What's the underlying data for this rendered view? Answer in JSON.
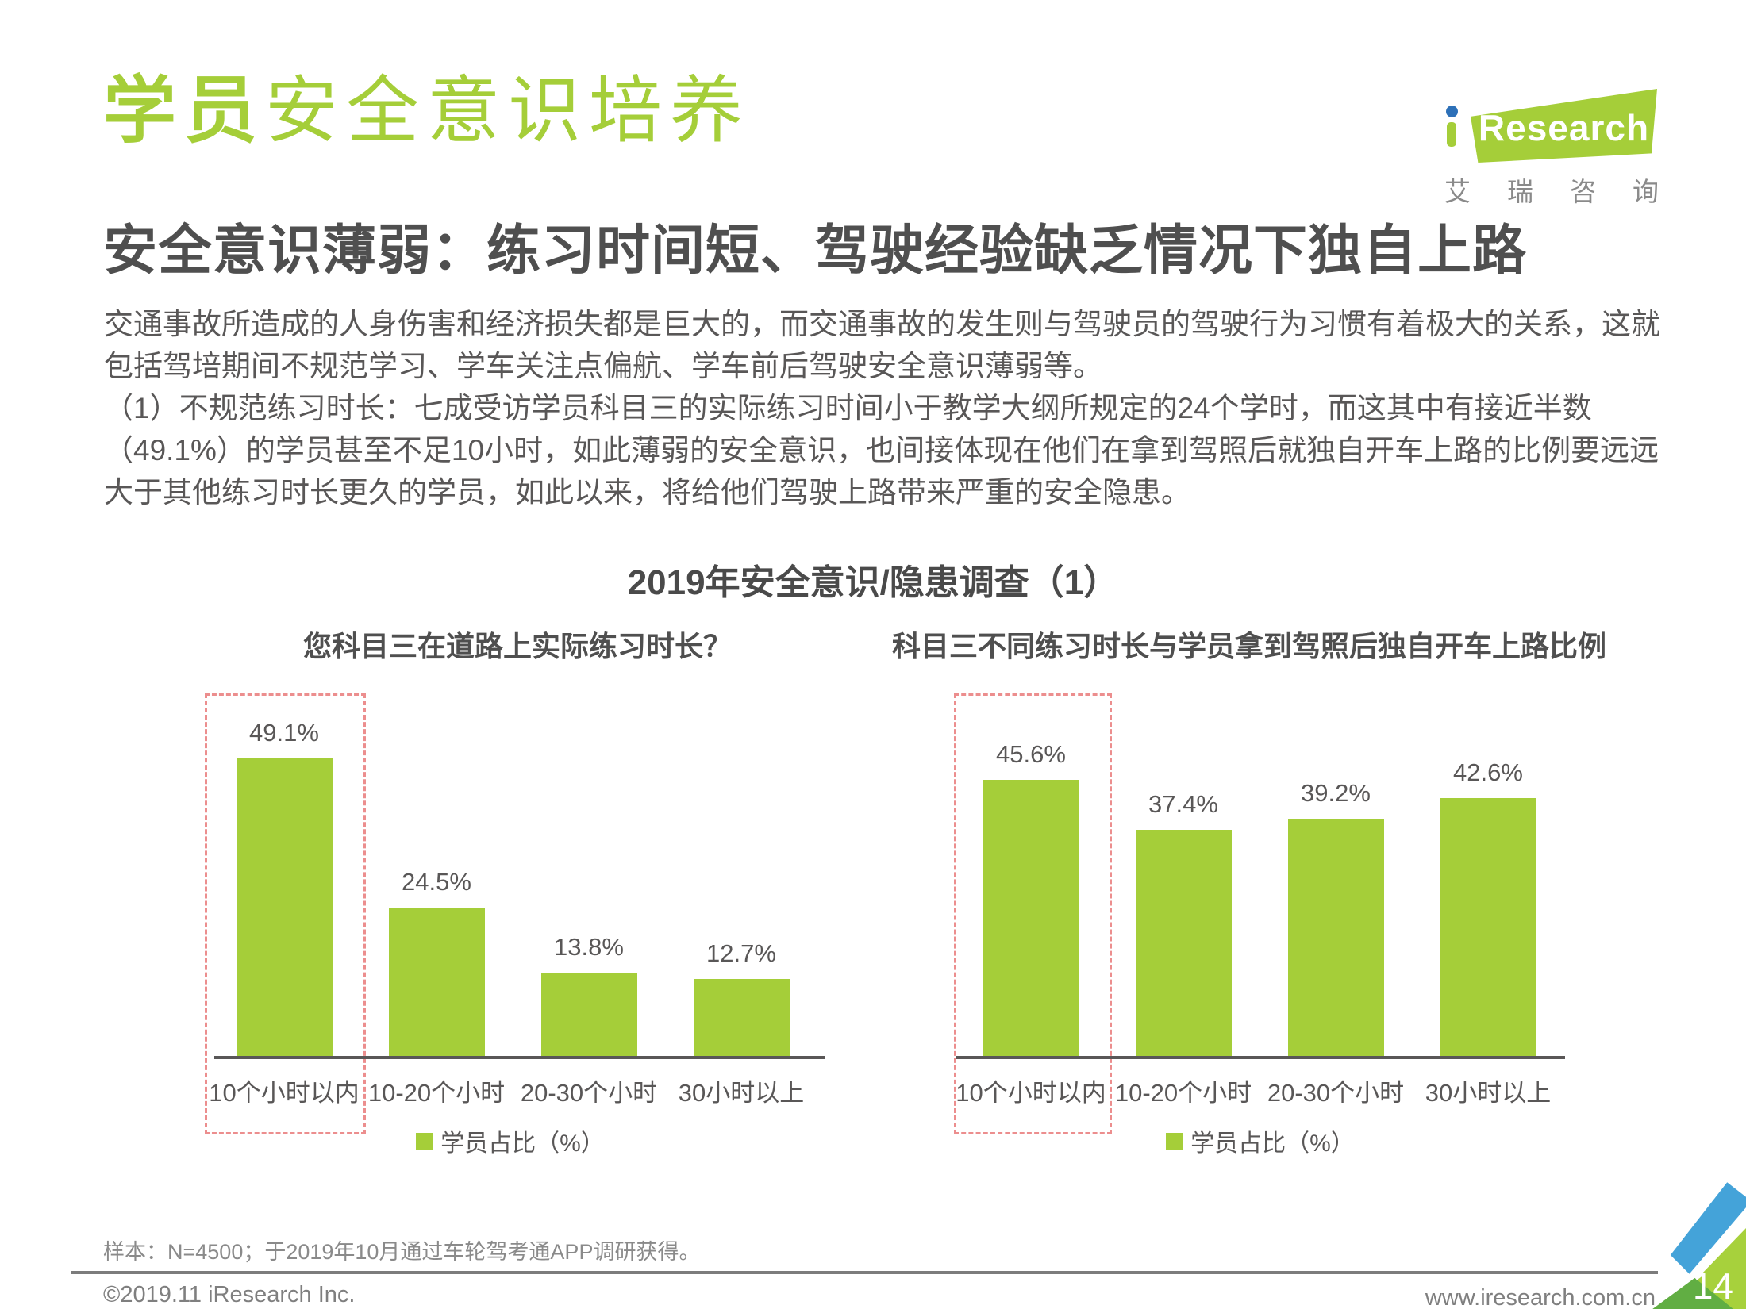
{
  "page": {
    "title_highlight": "学员",
    "title_rest": "安全意识培养",
    "subtitle": "安全意识薄弱：练习时间短、驾驶经验缺乏情况下独自上路",
    "body_lines": [
      "交通事故所造成的人身伤害和经济损失都是巨大的，而交通事故的发生则与驾驶员的驾驶行为习惯有着极大的关系，这就",
      "包括驾培期间不规范学习、学车关注点偏航、学车前后驾驶安全意识薄弱等。",
      "（1）不规范练习时长：七成受访学员科目三的实际练习时间小于教学大纲所规定的24个学时，而这其中有接近半数",
      "（49.1%）的学员甚至不足10小时，如此薄弱的安全意识，也间接体现在他们在拿到驾照后就独自开车上路的比例要远远",
      "大于其他练习时长更久的学员，如此以来，将给他们驾驶上路带来严重的安全隐患。"
    ]
  },
  "logo": {
    "brand_text": "Research",
    "brand_cn": "艾瑞咨询"
  },
  "section": {
    "title": "2019年安全意识/隐患调查（1）"
  },
  "chart_data": [
    {
      "type": "bar",
      "title": "您科目三在道路上实际练习时长？",
      "categories": [
        "10个小时以内",
        "10-20个小时",
        "20-30个小时",
        "30小时以上"
      ],
      "values": [
        49.1,
        24.5,
        13.8,
        12.7
      ],
      "unit": "%",
      "legend": "学员占比（%）",
      "highlight_index": 0,
      "bar_color": "#a5ce39",
      "highlight_box_color": "#ec8e8e",
      "ylim": [
        0,
        55
      ],
      "grid": false,
      "legend_position": "bottom"
    },
    {
      "type": "bar",
      "title": "科目三不同练习时长与学员拿到驾照后独自开车上路比例",
      "categories": [
        "10个小时以内",
        "10-20个小时",
        "20-30个小时",
        "30小时以上"
      ],
      "values": [
        45.6,
        37.4,
        39.2,
        42.6
      ],
      "unit": "%",
      "legend": "学员占比（%）",
      "highlight_index": 0,
      "bar_color": "#a5ce39",
      "highlight_box_color": "#ec8e8e",
      "ylim": [
        0,
        55
      ],
      "grid": false,
      "legend_position": "bottom"
    }
  ],
  "footer": {
    "note": "样本：N=4500；于2019年10月通过车轮驾考通APP调研获得。",
    "copyright": "©2019.11 iResearch Inc.",
    "website": "www.iresearch.com.cn",
    "page_number": "14"
  },
  "colors": {
    "brand_green": "#a5ce39",
    "highlight_red": "#ec8e8e",
    "logo_blue": "#2d70b8",
    "corner_blue": "#44a3d9",
    "corner_dark_green": "#61ae43",
    "text_dark": "#595757"
  }
}
